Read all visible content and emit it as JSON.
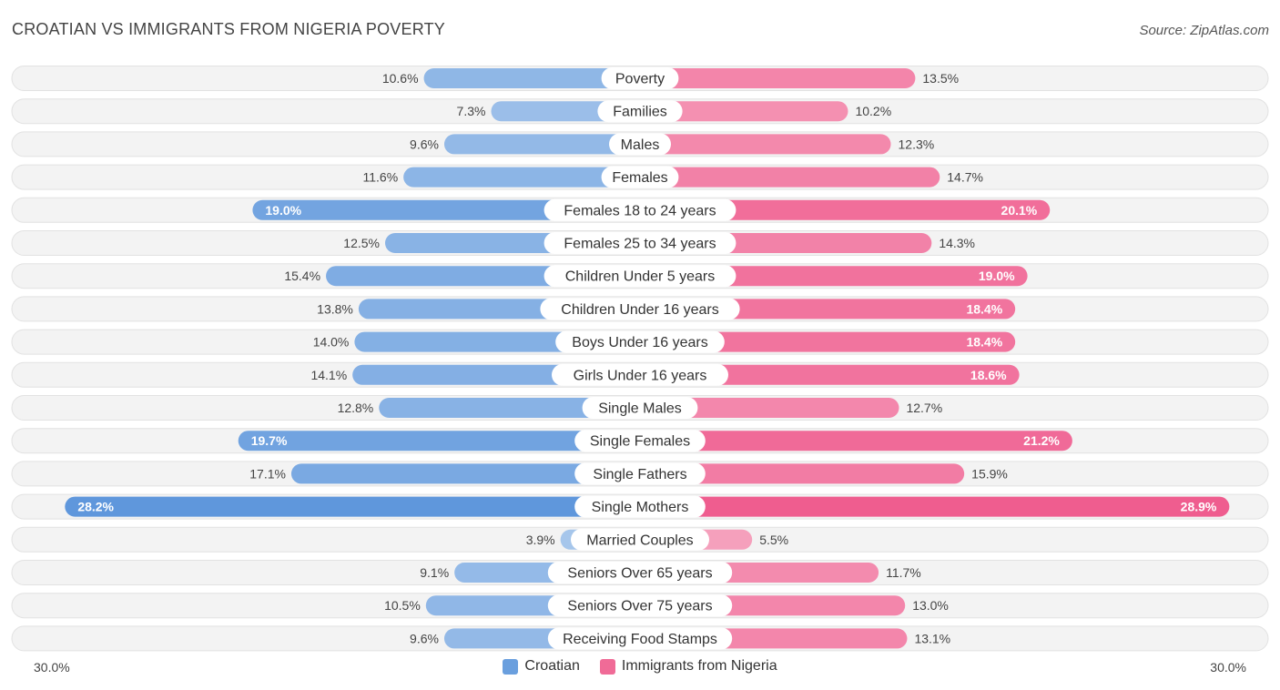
{
  "title": "CROATIAN VS IMMIGRANTS FROM NIGERIA POVERTY",
  "source": "Source: ZipAtlas.com",
  "axis": {
    "left_label": "30.0%",
    "right_label": "30.0%"
  },
  "legend": [
    {
      "label": "Croatian",
      "color": "#6a9fde"
    },
    {
      "label": "Immigrants from Nigeria",
      "color": "#f06b97"
    }
  ],
  "chart_data": {
    "type": "bar",
    "orientation": "horizontal-diverging",
    "title": "CROATIAN VS IMMIGRANTS FROM NIGERIA POVERTY",
    "xlim": [
      -30,
      30
    ],
    "unit": "%",
    "categories": [
      "Poverty",
      "Families",
      "Males",
      "Females",
      "Females 18 to 24 years",
      "Females 25 to 34 years",
      "Children Under 5 years",
      "Children Under 16 years",
      "Boys Under 16 years",
      "Girls Under 16 years",
      "Single Males",
      "Single Females",
      "Single Fathers",
      "Single Mothers",
      "Married Couples",
      "Seniors Over 65 years",
      "Seniors Over 75 years",
      "Receiving Food Stamps"
    ],
    "series": [
      {
        "name": "Croatian",
        "values": [
          10.6,
          7.3,
          9.6,
          11.6,
          19.0,
          12.5,
          15.4,
          13.8,
          14.0,
          14.1,
          12.8,
          19.7,
          17.1,
          28.2,
          3.9,
          9.1,
          10.5,
          9.6
        ],
        "labels": [
          "10.6%",
          "7.3%",
          "9.6%",
          "11.6%",
          "19.0%",
          "12.5%",
          "15.4%",
          "13.8%",
          "14.0%",
          "14.1%",
          "12.8%",
          "19.7%",
          "17.1%",
          "28.2%",
          "3.9%",
          "9.1%",
          "10.5%",
          "9.6%"
        ]
      },
      {
        "name": "Immigrants from Nigeria",
        "values": [
          13.5,
          10.2,
          12.3,
          14.7,
          20.1,
          14.3,
          19.0,
          18.4,
          18.4,
          18.6,
          12.7,
          21.2,
          15.9,
          28.9,
          5.5,
          11.7,
          13.0,
          13.1
        ],
        "labels": [
          "13.5%",
          "10.2%",
          "12.3%",
          "14.7%",
          "20.1%",
          "14.3%",
          "19.0%",
          "18.4%",
          "18.4%",
          "18.6%",
          "12.7%",
          "21.2%",
          "15.9%",
          "28.9%",
          "5.5%",
          "11.7%",
          "13.0%",
          "13.1%"
        ]
      }
    ]
  }
}
